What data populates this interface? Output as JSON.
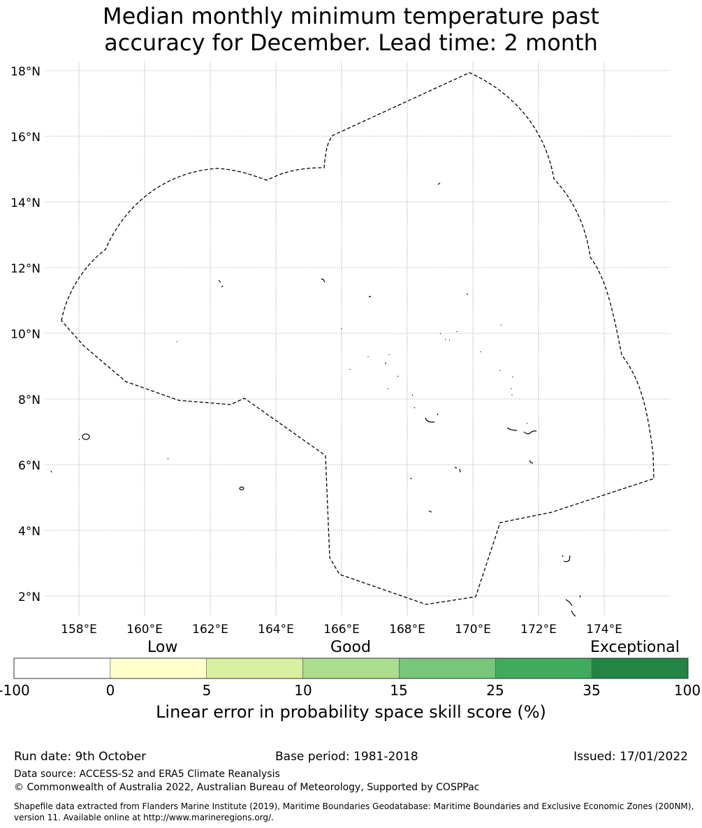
{
  "title": {
    "line1": "Median monthly minimum temperature past",
    "line2": "accuracy for December. Lead time: 2 month"
  },
  "map": {
    "lat_labels": [
      "18°N",
      "16°N",
      "14°N",
      "12°N",
      "10°N",
      "8°N",
      "6°N",
      "4°N",
      "2°N"
    ],
    "lon_labels": [
      "158°E",
      "160°E",
      "162°E",
      "164°E",
      "166°E",
      "168°E",
      "170°E",
      "172°E",
      "174°E"
    ]
  },
  "colorbar": {
    "categories": [
      "Low",
      "Good",
      "Exceptional"
    ],
    "ticks": [
      "-100",
      "0",
      "5",
      "10",
      "15",
      "25",
      "35",
      "100"
    ],
    "colors": [
      "#ffffff",
      "#ffffcc",
      "#d9f0a3",
      "#addd8e",
      "#78c679",
      "#41ab5d",
      "#238443"
    ],
    "label": "Linear error in probability space skill score (%)"
  },
  "footer": {
    "run_date": "Run date: 9th October",
    "base_period": "Base period: 1981-2018",
    "issued": "Issued: 17/01/2022",
    "data_source": "Data source: ACCESS-S2 and ERA5 Climate Reanalysis",
    "copyright": "© Commonwealth of Australia 2022, Australian Bureau of Meteorology, Supported by COSPPac",
    "shapefile": "Shapefile data extracted from Flanders Marine Institute (2019), Maritime Boundaries Geodatabase: Maritime Boundaries and Exclusive Economic Zones (200NM), version 11. Available online at http://www.marineregions.org/."
  }
}
